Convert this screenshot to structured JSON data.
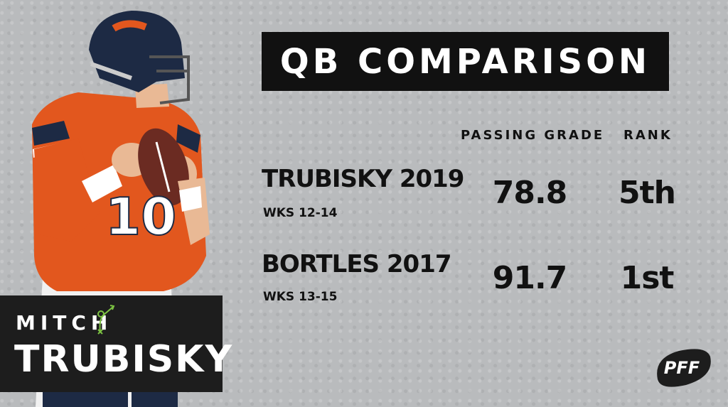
{
  "title": "QB COMPARISON",
  "columns": {
    "grade_header": "PASSING GRADE",
    "rank_header": "RANK"
  },
  "rows": [
    {
      "name": "TRUBISKY 2019",
      "weeks": "WKS 12-14",
      "grade": "78.8",
      "rank": "5th"
    },
    {
      "name": "BORTLES 2017",
      "weeks": "WKS 13-15",
      "grade": "91.7",
      "rank": "1st"
    }
  ],
  "player": {
    "first_name": "MITCH",
    "last_name": "TRUBISKY",
    "jersey_number": "10"
  },
  "brand": {
    "logo_text": "PFF",
    "accent_color": "#e2571e",
    "navy_color": "#1d2a44",
    "play_icon_color": "#7cc242"
  },
  "icons": [
    "player-photo",
    "play-diagram-icon",
    "pff-logo"
  ]
}
